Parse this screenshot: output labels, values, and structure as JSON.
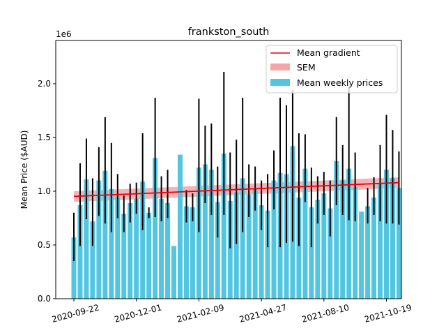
{
  "chart_data": {
    "type": "bar",
    "title": "frankston_south",
    "xlabel": "",
    "ylabel": "Mean Price ($AUD)",
    "y_multiplier_label": "1e6",
    "ylim": [
      0,
      2.4
    ],
    "y_ticks": [
      0.0,
      0.5,
      1.0,
      1.5,
      2.0
    ],
    "y_tick_labels": [
      "0.0",
      "0.5",
      "1.0",
      "1.5",
      "2.0"
    ],
    "x_tick_labels": [
      "2020-09-22",
      "2020-12-01",
      "2021-02-09",
      "2021-04-27",
      "2021-08-10",
      "2021-10-19"
    ],
    "x_tick_indices": [
      0,
      10,
      20,
      30,
      40,
      50
    ],
    "grid": false,
    "legend_position": "top-right",
    "legend": {
      "gradient_label": "Mean gradient",
      "sem_label": "SEM",
      "bars_label": "Mean weekly prices"
    },
    "colors": {
      "bars": "#52c5e0",
      "error_bars": "#000000",
      "gradient_line": "#e8000b",
      "sem_band": "#f4a6a8"
    },
    "series": [
      {
        "name": "Mean weekly prices",
        "values": [
          0.57,
          0.87,
          1.11,
          0.72,
          1.1,
          1.19,
          1.02,
          0.95,
          0.79,
          0.89,
          0.93,
          1.09,
          0.8,
          1.31,
          0.93,
          0.89,
          0.49,
          1.34,
          0.86,
          0.85,
          1.22,
          1.25,
          1.2,
          0.9,
          1.35,
          0.91,
          0.99,
          1.12,
          0.97,
          1.02,
          0.87,
          0.82,
          1.1,
          1.17,
          1.16,
          1.42,
          0.94,
          1.21,
          0.85,
          0.92,
          0.98,
          0.84,
          1.28,
          1.1,
          1.21,
          1.04,
          0.81,
          0.86,
          0.94,
          1.07,
          1.2,
          1.12,
          1.03
        ],
        "err_low": [
          0.35,
          0.49,
          0.74,
          0.49,
          0.77,
          0.7,
          0.62,
          0.75,
          0.62,
          0.71,
          0.79,
          0.64,
          0.75,
          0.76,
          0.72,
          0.75,
          0.49,
          1.34,
          0.71,
          0.72,
          0.62,
          0.89,
          0.78,
          0.57,
          0.78,
          0.47,
          0.51,
          0.62,
          0.76,
          0.82,
          0.64,
          0.48,
          0.83,
          0.48,
          0.52,
          0.53,
          0.49,
          0.9,
          0.48,
          0.7,
          0.78,
          0.58,
          0.87,
          0.78,
          0.73,
          0.72,
          0.81,
          0.7,
          0.78,
          0.72,
          0.7,
          0.7,
          0.69
        ],
        "err_high": [
          0.8,
          1.26,
          1.49,
          1.12,
          1.41,
          1.69,
          1.45,
          1.16,
          0.96,
          1.07,
          1.08,
          1.54,
          0.85,
          1.87,
          1.14,
          1.2,
          0.49,
          1.34,
          1.01,
          0.98,
          1.86,
          1.61,
          1.63,
          1.23,
          2.11,
          1.36,
          1.48,
          1.87,
          1.25,
          1.23,
          1.1,
          1.16,
          1.38,
          1.87,
          1.8,
          1.94,
          1.54,
          1.53,
          1.22,
          1.14,
          1.18,
          1.1,
          1.69,
          1.43,
          1.97,
          1.36,
          0.81,
          1.03,
          1.13,
          1.43,
          1.71,
          1.57,
          1.37
        ]
      }
    ],
    "mean_gradient": {
      "start": 0.952,
      "end": 1.08
    },
    "sem": {
      "start_low": 0.9,
      "start_high": 1.0,
      "end_low": 1.03,
      "end_high": 1.13
    }
  }
}
